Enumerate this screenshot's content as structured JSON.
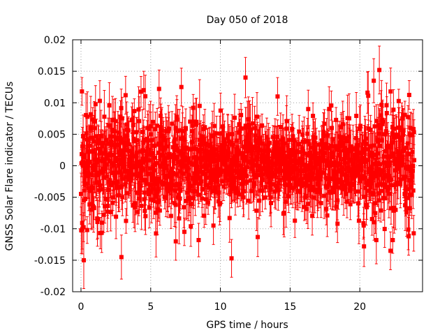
{
  "chart_data": {
    "type": "scatter",
    "title": "Day 050 of 2018",
    "xlabel": "GPS time / hours",
    "ylabel": "GNSS Solar Flare indicator / TECUs",
    "xlim": [
      -0.6,
      24.5
    ],
    "ylim": [
      -0.02,
      0.02
    ],
    "x_ticks": [
      0,
      5,
      10,
      15,
      20
    ],
    "x_tick_labels": [
      "0",
      "5",
      "10",
      "15",
      "20"
    ],
    "y_ticks": [
      -0.02,
      -0.015,
      -0.01,
      -0.005,
      0,
      0.005,
      0.01,
      0.015,
      0.02
    ],
    "y_tick_labels": [
      "-0.02",
      "-0.015",
      "-0.01",
      "-0.005",
      "0",
      "0.005",
      "0.01",
      "0.015",
      "0.02"
    ],
    "grid": true,
    "series_color": "#ff0000",
    "series": [
      {
        "name": "GNSS Solar Flare indicator",
        "marker": "square",
        "error_bars": true,
        "x_start": 0,
        "x_end": 23.9,
        "n_points": 1400,
        "typical_std": 0.0035,
        "typical_error": 0.003,
        "noise_envelope": [
          {
            "x": 0,
            "std": 0.0055
          },
          {
            "x": 1,
            "std": 0.0045
          },
          {
            "x": 5,
            "std": 0.004
          },
          {
            "x": 8,
            "std": 0.0038
          },
          {
            "x": 10,
            "std": 0.0032
          },
          {
            "x": 12,
            "std": 0.0036
          },
          {
            "x": 15,
            "std": 0.0028
          },
          {
            "x": 18,
            "std": 0.003
          },
          {
            "x": 20,
            "std": 0.0036
          },
          {
            "x": 21,
            "std": 0.0048
          },
          {
            "x": 22,
            "std": 0.0042
          },
          {
            "x": 23.9,
            "std": 0.004
          }
        ],
        "notable_points": [
          {
            "x": 0.2,
            "y": -0.015,
            "error": 0.0045
          },
          {
            "x": 2.9,
            "y": -0.0145,
            "error": 0.0035
          },
          {
            "x": 10.8,
            "y": -0.0147,
            "error": 0.003
          },
          {
            "x": 11.8,
            "y": 0.014,
            "error": 0.0032
          },
          {
            "x": 0.1,
            "y": -0.01,
            "error": 0.004
          },
          {
            "x": 21.4,
            "y": 0.0152,
            "error": 0.0038
          },
          {
            "x": 20.3,
            "y": -0.0128,
            "error": 0.0032
          },
          {
            "x": 21.0,
            "y": 0.0135,
            "error": 0.0035
          },
          {
            "x": 22.2,
            "y": -0.0135,
            "error": 0.003
          },
          {
            "x": 7.2,
            "y": 0.0125,
            "error": 0.003
          },
          {
            "x": 4.5,
            "y": 0.012,
            "error": 0.003
          },
          {
            "x": 5.6,
            "y": 0.0122,
            "error": 0.003
          },
          {
            "x": 6.8,
            "y": -0.012,
            "error": 0.003
          },
          {
            "x": 14.1,
            "y": 0.011,
            "error": 0.003
          },
          {
            "x": 23.5,
            "y": -0.0112,
            "error": 0.003
          },
          {
            "x": 1.2,
            "y": -0.0085,
            "error": 0.003
          },
          {
            "x": 3.2,
            "y": 0.0112,
            "error": 0.003
          },
          {
            "x": 9.5,
            "y": -0.0095,
            "error": 0.003
          },
          {
            "x": 16.3,
            "y": 0.009,
            "error": 0.003
          },
          {
            "x": 18.4,
            "y": -0.0092,
            "error": 0.003
          }
        ]
      }
    ]
  }
}
